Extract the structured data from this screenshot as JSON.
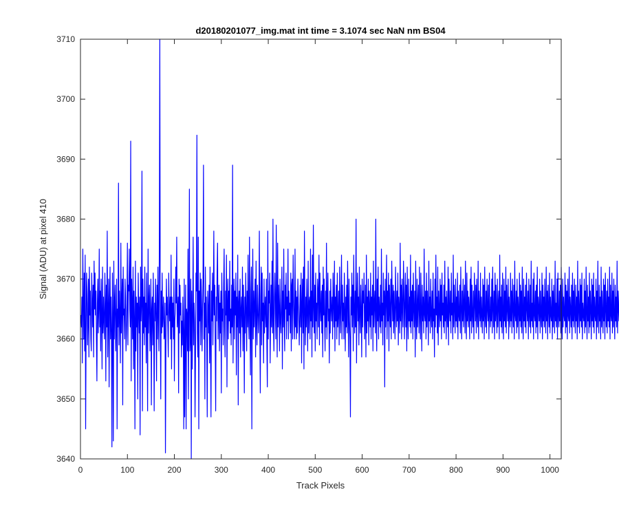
{
  "chart_data": {
    "type": "line",
    "title": "d20180201077_img.mat int time = 3.1074 sec  NaN nm BS04",
    "xlabel": "Track Pixels",
    "ylabel": "Signal (ADU) at pixel 410",
    "xlim": [
      0,
      1024
    ],
    "ylim": [
      3640,
      3710
    ],
    "xticks": [
      0,
      100,
      200,
      300,
      400,
      500,
      600,
      700,
      800,
      900,
      1000
    ],
    "yticks": [
      3640,
      3650,
      3660,
      3670,
      3680,
      3690,
      3700,
      3710
    ],
    "grid": false,
    "line_color": "#0000ff",
    "series": [
      {
        "x_start": 1,
        "x_step": 1,
        "values": [
          3664,
          3662,
          3667,
          3656,
          3675,
          3666,
          3660,
          3671,
          3658,
          3674,
          3645,
          3661,
          3671,
          3668,
          3659,
          3663,
          3670,
          3657,
          3672,
          3664,
          3668,
          3660,
          3658,
          3671,
          3666,
          3662,
          3669,
          3657,
          3673,
          3665,
          3671,
          3664,
          3668,
          3660,
          3653,
          3666,
          3670,
          3661,
          3665,
          3675,
          3662,
          3668,
          3658,
          3670,
          3664,
          3655,
          3672,
          3661,
          3667,
          3663,
          3660,
          3671,
          3666,
          3653,
          3669,
          3662,
          3678,
          3657,
          3664,
          3670,
          3652,
          3666,
          3672,
          3660,
          3667,
          3661,
          3642,
          3671,
          3664,
          3643,
          3673,
          3660,
          3666,
          3669,
          3658,
          3663,
          3670,
          3645,
          3665,
          3662,
          3686,
          3659,
          3668,
          3664,
          3656,
          3676,
          3661,
          3666,
          3670,
          3649,
          3672,
          3664,
          3665,
          3660,
          3670,
          3667,
          3658,
          3661,
          3666,
          3676,
          3659,
          3669,
          3668,
          3675,
          3665,
          3662,
          3693,
          3653,
          3670,
          3666,
          3660,
          3672,
          3655,
          3668,
          3663,
          3645,
          3673,
          3658,
          3667,
          3662,
          3666,
          3650,
          3671,
          3665,
          3661,
          3667,
          3644,
          3672,
          3663,
          3666,
          3688,
          3648,
          3670,
          3661,
          3667,
          3659,
          3672,
          3662,
          3666,
          3656,
          3671,
          3664,
          3648,
          3675,
          3661,
          3666,
          3669,
          3658,
          3663,
          3670,
          3649,
          3665,
          3667,
          3659,
          3671,
          3662,
          3648,
          3666,
          3663,
          3670,
          3664,
          3653,
          3669,
          3660,
          3672,
          3664,
          3658,
          3676,
          3710,
          3663,
          3650,
          3668,
          3661,
          3671,
          3662,
          3664,
          3667,
          3660,
          3661,
          3666,
          3641,
          3659,
          3670,
          3664,
          3667,
          3662,
          3657,
          3671,
          3665,
          3663,
          3667,
          3660,
          3674,
          3655,
          3667,
          3662,
          3666,
          3660,
          3670,
          3653,
          3663,
          3665,
          3672,
          3666,
          3677,
          3662,
          3664,
          3667,
          3651,
          3670,
          3661,
          3669,
          3664,
          3666,
          3657,
          3663,
          3659,
          3667,
          3661,
          3645,
          3670,
          3647,
          3660,
          3669,
          3645,
          3665,
          3664,
          3658,
          3675,
          3650,
          3665,
          3685,
          3658,
          3660,
          3670,
          3640,
          3668,
          3655,
          3664,
          3677,
          3659,
          3666,
          3663,
          3647,
          3657,
          3671,
          3668,
          3694,
          3661,
          3657,
          3677,
          3645,
          3668,
          3663,
          3671,
          3659,
          3670,
          3666,
          3658,
          3665,
          3670,
          3689,
          3660,
          3666,
          3650,
          3672,
          3662,
          3667,
          3659,
          3647,
          3668,
          3665,
          3661,
          3669,
          3656,
          3672,
          3660,
          3647,
          3668,
          3663,
          3671,
          3659,
          3666,
          3678,
          3664,
          3669,
          3659,
          3648,
          3667,
          3663,
          3671,
          3676,
          3660,
          3665,
          3669,
          3658,
          3666,
          3661,
          3668,
          3651,
          3671,
          3663,
          3665,
          3659,
          3669,
          3675,
          3662,
          3657,
          3668,
          3664,
          3674,
          3652,
          3666,
          3670,
          3660,
          3668,
          3663,
          3673,
          3661,
          3665,
          3659,
          3669,
          3662,
          3689,
          3656,
          3666,
          3670,
          3660,
          3668,
          3664,
          3671,
          3654,
          3667,
          3662,
          3674,
          3649,
          3666,
          3668,
          3661,
          3670,
          3657,
          3665,
          3667,
          3662,
          3672,
          3658,
          3669,
          3664,
          3651,
          3667,
          3661,
          3671,
          3665,
          3658,
          3668,
          3662,
          3674,
          3663,
          3660,
          3677,
          3664,
          3654,
          3668,
          3672,
          3645,
          3666,
          3675,
          3660,
          3668,
          3662,
          3666,
          3670,
          3657,
          3673,
          3663,
          3659,
          3669,
          3665,
          3661,
          3664,
          3678,
          3662,
          3651,
          3667,
          3672,
          3659,
          3671,
          3663,
          3666,
          3656,
          3670,
          3661,
          3665,
          3667,
          3662,
          3670,
          3659,
          3652,
          3678,
          3660,
          3668,
          3666,
          3671,
          3656,
          3664,
          3669,
          3662,
          3673,
          3661,
          3680,
          3663,
          3658,
          3667,
          3671,
          3665,
          3660,
          3679,
          3664,
          3657,
          3676,
          3662,
          3669,
          3665,
          3658,
          3670,
          3663,
          3661,
          3666,
          3672,
          3655,
          3668,
          3662,
          3675,
          3663,
          3658,
          3669,
          3665,
          3671,
          3660,
          3667,
          3663,
          3675,
          3660,
          3668,
          3664,
          3666,
          3661,
          3671,
          3658,
          3669,
          3670,
          3660,
          3674,
          3667,
          3663,
          3660,
          3675,
          3662,
          3668,
          3660,
          3667,
          3661,
          3670,
          3666,
          3663,
          3659,
          3664,
          3669,
          3662,
          3671,
          3656,
          3666,
          3670,
          3661,
          3672,
          3655,
          3678,
          3665,
          3659,
          3667,
          3662,
          3670,
          3664,
          3658,
          3673,
          3661,
          3666,
          3667,
          3660,
          3675,
          3663,
          3668,
          3657,
          3674,
          3662,
          3679,
          3665,
          3661,
          3669,
          3658,
          3671,
          3663,
          3666,
          3660,
          3670,
          3668,
          3662,
          3674,
          3659,
          3671,
          3665,
          3663,
          3668,
          3661,
          3669,
          3657,
          3672,
          3664,
          3670,
          3663,
          3658,
          3668,
          3662,
          3676,
          3660,
          3666,
          3671,
          3663,
          3665,
          3656,
          3668,
          3661,
          3670,
          3665,
          3663,
          3667,
          3660,
          3671,
          3666,
          3662,
          3673,
          3658,
          3667,
          3663,
          3669,
          3660,
          3671,
          3662,
          3664,
          3668,
          3659,
          3672,
          3665,
          3661,
          3667,
          3674,
          3660,
          3669,
          3663,
          3666,
          3660,
          3671,
          3665,
          3658,
          3667,
          3662,
          3669,
          3661,
          3673,
          3666,
          3657,
          3670,
          3663,
          3660,
          3647,
          3667,
          3664,
          3671,
          3662,
          3669,
          3658,
          3674,
          3665,
          3661,
          3668,
          3662,
          3680,
          3656,
          3666,
          3671,
          3663,
          3667,
          3659,
          3672,
          3664,
          3661,
          3669,
          3665,
          3657,
          3670,
          3662,
          3668,
          3666,
          3671,
          3660,
          3664,
          3669,
          3657,
          3674,
          3661,
          3667,
          3663,
          3670,
          3659,
          3668,
          3665,
          3662,
          3671,
          3660,
          3667,
          3664,
          3669,
          3658,
          3673,
          3662,
          3666,
          3668,
          3661,
          3680,
          3664,
          3658,
          3670,
          3663,
          3672,
          3660,
          3667,
          3665,
          3662,
          3669,
          3661,
          3675,
          3663,
          3666,
          3659,
          3671,
          3664,
          3668,
          3652,
          3670,
          3662,
          3666,
          3674,
          3660,
          3668,
          3663,
          3671,
          3658,
          3669,
          3665,
          3662,
          3670,
          3660,
          3673,
          3667,
          3663,
          3669,
          3661,
          3668,
          3664,
          3660,
          3672,
          3666,
          3662,
          3668,
          3663,
          3671,
          3659,
          3667,
          3665,
          3661,
          3676,
          3663,
          3669,
          3660,
          3670,
          3665,
          3662,
          3673,
          3668,
          3660,
          3666,
          3671,
          3662,
          3669,
          3658,
          3672,
          3664,
          3660,
          3670,
          3663,
          3667,
          3662,
          3674,
          3661,
          3668,
          3663,
          3669,
          3660,
          3671,
          3665,
          3662,
          3668,
          3657,
          3673,
          3664,
          3660,
          3670,
          3662,
          3666,
          3669,
          3661,
          3672,
          3664,
          3660,
          3671,
          3665,
          3658,
          3669,
          3663,
          3667,
          3661,
          3675,
          3664,
          3663,
          3668,
          3660,
          3671,
          3662,
          3668,
          3665,
          3659,
          3673,
          3663,
          3667,
          3661,
          3670,
          3664,
          3662,
          3668,
          3660,
          3671,
          3663,
          3665,
          3657,
          3670,
          3662,
          3674,
          3664,
          3667,
          3661,
          3672,
          3659,
          3668,
          3665,
          3662,
          3670,
          3663,
          3669,
          3660,
          3671,
          3664,
          3666,
          3662,
          3669,
          3661,
          3673,
          3663,
          3667,
          3660,
          3668,
          3664,
          3662,
          3672,
          3659,
          3670,
          3665,
          3663,
          3668,
          3661,
          3671,
          3664,
          3666,
          3660,
          3674,
          3662,
          3669,
          3665,
          3661,
          3670,
          3663,
          3667,
          3662,
          3671,
          3660,
          3668,
          3664,
          3663,
          3669,
          3661,
          3672,
          3665,
          3660,
          3668,
          3663,
          3670,
          3662,
          3666,
          3669,
          3661,
          3673,
          3664,
          3660,
          3671,
          3663,
          3668,
          3662,
          3667,
          3665,
          3660,
          3670,
          3663,
          3672,
          3661,
          3669,
          3664,
          3662,
          3668,
          3660,
          3671,
          3666,
          3663,
          3669,
          3661,
          3670,
          3664,
          3662,
          3673,
          3660,
          3668,
          3665,
          3663,
          3671,
          3662,
          3667,
          3664,
          3661,
          3670,
          3663,
          3669,
          3660,
          3672,
          3664,
          3662,
          3668,
          3661,
          3670,
          3665,
          3663,
          3669,
          3660,
          3671,
          3664,
          3662,
          3667,
          3663,
          3670,
          3661,
          3672,
          3665,
          3662,
          3668,
          3660,
          3671,
          3663,
          3669,
          3664,
          3661,
          3670,
          3662,
          3666,
          3668,
          3660,
          3674,
          3663,
          3667,
          3662,
          3669,
          3661,
          3671,
          3664,
          3660,
          3670,
          3663,
          3668,
          3662,
          3672,
          3661,
          3669,
          3665,
          3663,
          3670,
          3660,
          3667,
          3664,
          3662,
          3671,
          3663,
          3668,
          3661,
          3670,
          3665,
          3662,
          3669,
          3660,
          3673,
          3664,
          3663,
          3668,
          3661,
          3670,
          3662,
          3667,
          3665,
          3660,
          3671,
          3663,
          3669,
          3662,
          3668,
          3661,
          3672,
          3664,
          3660,
          3670,
          3663,
          3667,
          3662,
          3669,
          3661,
          3671,
          3665,
          3663,
          3668,
          3660,
          3670,
          3664,
          3662,
          3669,
          3661,
          3673,
          3663,
          3666,
          3662,
          3670,
          3660,
          3671,
          3664,
          3663,
          3668,
          3661,
          3669,
          3662,
          3672,
          3660,
          3667,
          3665,
          3663,
          3670,
          3661,
          3668,
          3664,
          3662,
          3671,
          3660,
          3669,
          3663,
          3667,
          3662,
          3670,
          3664,
          3661,
          3672,
          3663,
          3668,
          3660,
          3669,
          3665,
          3662,
          3671,
          3661,
          3667,
          3664,
          3663,
          3670,
          3660,
          3668,
          3662,
          3669,
          3664,
          3661,
          3673,
          3663,
          3666,
          3662,
          3670,
          3660,
          3671,
          3664,
          3662,
          3668,
          3663,
          3669,
          3661,
          3672,
          3665,
          3660,
          3670,
          3662,
          3667,
          3664,
          3663,
          3671,
          3661,
          3669,
          3662,
          3668,
          3660,
          3670,
          3664,
          3663,
          3672,
          3661,
          3667,
          3665,
          3662,
          3669,
          3660,
          3671,
          3663,
          3668,
          3662,
          3670,
          3664,
          3661,
          3669,
          3663,
          3667,
          3660,
          3673,
          3662,
          3668,
          3665,
          3661,
          3670,
          3663,
          3669,
          3662,
          3671,
          3660,
          3666,
          3664,
          3663,
          3670,
          3661,
          3668,
          3662,
          3672,
          3664,
          3660,
          3669,
          3663,
          3667,
          3661,
          3671,
          3662,
          3668,
          3665,
          3660,
          3670,
          3663,
          3669,
          3662,
          3671,
          3661,
          3667,
          3664,
          3663,
          3670,
          3660,
          3668,
          3662,
          3673,
          3664,
          3661,
          3669,
          3663,
          3667,
          3660,
          3672,
          3662,
          3668,
          3664,
          3661,
          3670,
          3663,
          3669,
          3660,
          3671,
          3665,
          3662,
          3668,
          3661,
          3670,
          3663,
          3667,
          3662,
          3672,
          3660,
          3669,
          3664,
          3663,
          3671,
          3661,
          3668,
          3662,
          3670,
          3664,
          3660,
          3669,
          3663,
          3667,
          3662,
          3673,
          3661,
          3668,
          3665,
          3663,
          3670,
          3660,
          3671,
          3662,
          3669,
          3664,
          3661,
          3668,
          3663,
          3670,
          3660,
          3672,
          3662,
          3667,
          3665,
          3663,
          3669,
          3661,
          3671,
          3664,
          3662,
          3668,
          3660,
          3670,
          3663,
          3669,
          3661,
          3672,
          3664,
          3662,
          3667,
          3663,
          3681
        ]
      }
    ]
  }
}
